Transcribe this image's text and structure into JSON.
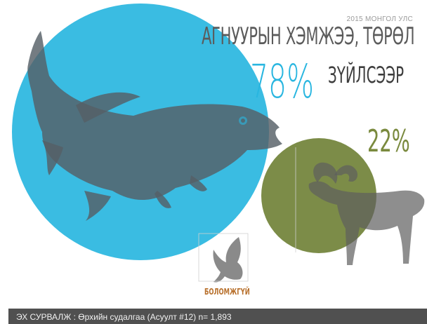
{
  "header": {
    "year_label": "2015 МОНГОЛ УЛС",
    "title": "АГНУУРЫН ХЭМЖЭЭ, ТӨРӨЛ"
  },
  "chart_data": {
    "type": "bubble",
    "series": [
      {
        "name": "ЗҮЙЛСЭЭР",
        "value": 78,
        "label": "78%",
        "icon": "fish-icon",
        "color": "#29b6e0"
      },
      {
        "value": 22,
        "label": "22%",
        "icon": "mountain-goat-icon",
        "color": "#6e7f34"
      },
      {
        "name": "БОЛОМЖГҮЙ",
        "icon": "bird-icon",
        "color": "#b8702c"
      }
    ]
  },
  "colors": {
    "fish_circle": "#29b6e0",
    "goat_circle": "#6e7f34",
    "silhouette": "#6b6b6b",
    "footer_bg": "#505050"
  },
  "footer": {
    "source": "ЭХ СУРВАЛЖ : Өрхийн судалгаа (Асуулт #12) n= 1,893"
  }
}
